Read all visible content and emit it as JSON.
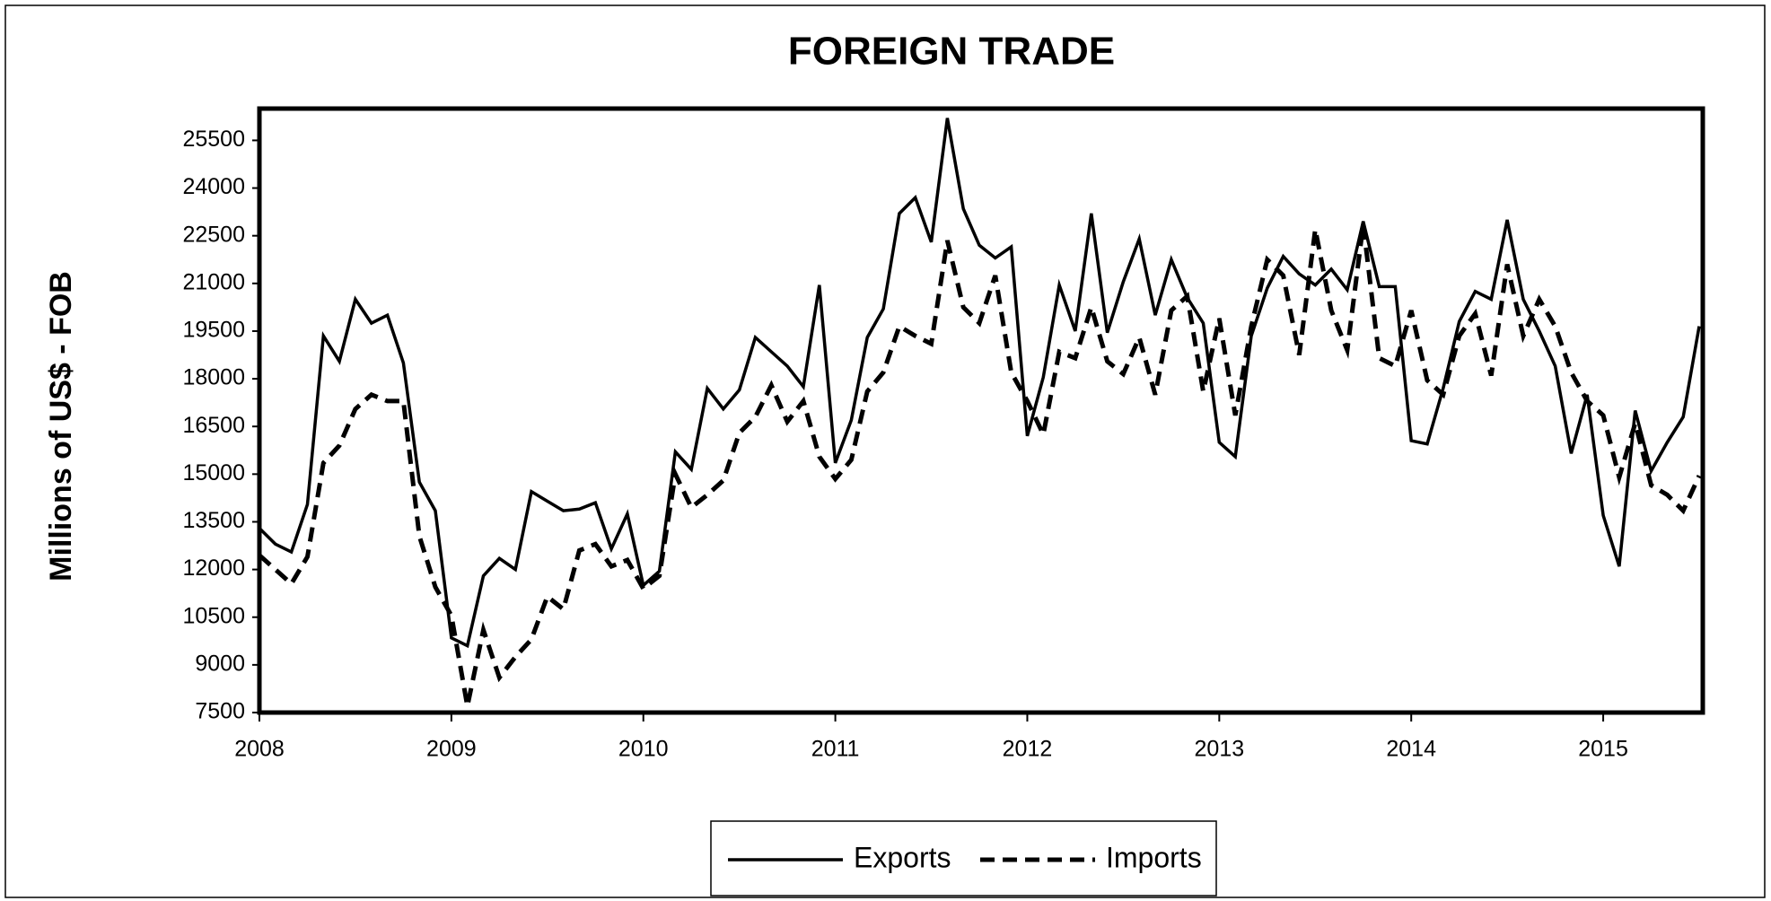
{
  "chart_data": {
    "type": "line",
    "title": "FOREIGN TRADE",
    "y_label": "Millions of US$ - FOB",
    "categories": [
      "2008",
      null,
      null,
      null,
      null,
      null,
      null,
      null,
      null,
      null,
      null,
      null,
      "2009",
      null,
      null,
      null,
      null,
      null,
      null,
      null,
      null,
      null,
      null,
      null,
      "2010",
      null,
      null,
      null,
      null,
      null,
      null,
      null,
      null,
      null,
      null,
      null,
      "2011",
      null,
      null,
      null,
      null,
      null,
      null,
      null,
      null,
      null,
      null,
      null,
      "2012",
      null,
      null,
      null,
      null,
      null,
      null,
      null,
      null,
      null,
      null,
      null,
      "2013",
      null,
      null,
      null,
      null,
      null,
      null,
      null,
      null,
      null,
      null,
      null,
      "2014",
      null,
      null,
      null,
      null,
      null,
      null,
      null,
      null,
      null,
      null,
      null,
      "2015",
      null,
      null,
      null,
      null,
      null,
      null
    ],
    "series": [
      {
        "name": "Exports",
        "color": "#000000",
        "dash": "solid",
        "values": [
          13300,
          12800,
          12550,
          14050,
          19350,
          18550,
          20500,
          19750,
          20000,
          18500,
          14750,
          13850,
          9850,
          9600,
          11800,
          12350,
          12000,
          14450,
          14150,
          13850,
          13900,
          14100,
          12650,
          13750,
          11500,
          11950,
          15700,
          15150,
          17700,
          17050,
          17650,
          19300,
          18850,
          18400,
          17750,
          20950,
          15350,
          16700,
          19300,
          20200,
          23200,
          23700,
          22300,
          26200,
          23350,
          22200,
          21800,
          22150,
          16200,
          18050,
          20950,
          19500,
          23200,
          19450,
          21050,
          22400,
          20000,
          21750,
          20550,
          19750,
          16000,
          15550,
          19350,
          20850,
          21850,
          21300,
          20950,
          21450,
          20800,
          22950,
          20900,
          20900,
          16050,
          15950,
          17700,
          19800,
          20750,
          20500,
          23000,
          20500,
          19500,
          18400,
          15650,
          17500,
          13700,
          12100,
          17000,
          15100,
          16000,
          16800,
          19650
        ]
      },
      {
        "name": "Imports",
        "color": "#000000",
        "dash": "dashed",
        "values": [
          12450,
          12000,
          11550,
          12400,
          15350,
          15900,
          17050,
          17500,
          17300,
          17300,
          13050,
          11450,
          10550,
          7700,
          10100,
          8600,
          9250,
          9800,
          11150,
          10750,
          12600,
          12800,
          12100,
          12300,
          11400,
          11800,
          15000,
          13950,
          14350,
          14800,
          16300,
          16800,
          17800,
          16650,
          17300,
          15550,
          14850,
          15450,
          17600,
          18200,
          19650,
          19350,
          19100,
          22350,
          20250,
          19750,
          21250,
          18200,
          17300,
          16250,
          18850,
          18650,
          20250,
          18550,
          18150,
          19300,
          17500,
          20150,
          20600,
          17600,
          19900,
          16850,
          19650,
          21750,
          21250,
          18750,
          22700,
          20150,
          18900,
          22850,
          18650,
          18400,
          20150,
          17950,
          17500,
          19350,
          20050,
          18100,
          21600,
          19350,
          20500,
          19650,
          18200,
          17300,
          16850,
          14900,
          16600,
          14650,
          14350,
          13850,
          14950
        ]
      }
    ],
    "ylim": [
      7500,
      26500
    ],
    "yticks": [
      7500,
      9000,
      10500,
      12000,
      13500,
      15000,
      16500,
      18000,
      19500,
      21000,
      22500,
      24000,
      25500
    ],
    "grid": false,
    "legend": "bottom"
  }
}
